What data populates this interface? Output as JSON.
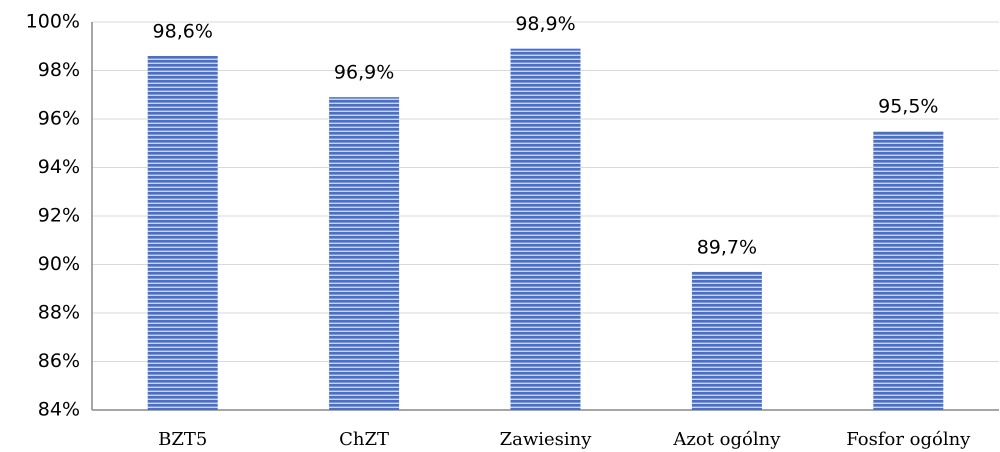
{
  "chart_data": {
    "type": "bar",
    "categories": [
      "BZT5",
      "ChZT",
      "Zawiesiny",
      "Azot ogólny",
      "Fosfor ogólny"
    ],
    "values": [
      98.6,
      96.9,
      98.9,
      89.7,
      95.5
    ],
    "value_labels": [
      "98,6%",
      "96,9%",
      "98,9%",
      "89,7%",
      "95,5%"
    ],
    "color": "#4a6fc7",
    "ylim": [
      84,
      100
    ],
    "yticks": [
      {
        "value": 84,
        "label": "84%"
      },
      {
        "value": 86,
        "label": "86%"
      },
      {
        "value": 88,
        "label": "88%"
      },
      {
        "value": 90,
        "label": "90%"
      },
      {
        "value": 92,
        "label": "92%"
      },
      {
        "value": 94,
        "label": "94%"
      },
      {
        "value": 96,
        "label": "96%"
      },
      {
        "value": 98,
        "label": "98%"
      },
      {
        "value": 100,
        "label": "100%"
      }
    ],
    "grid": true
  }
}
